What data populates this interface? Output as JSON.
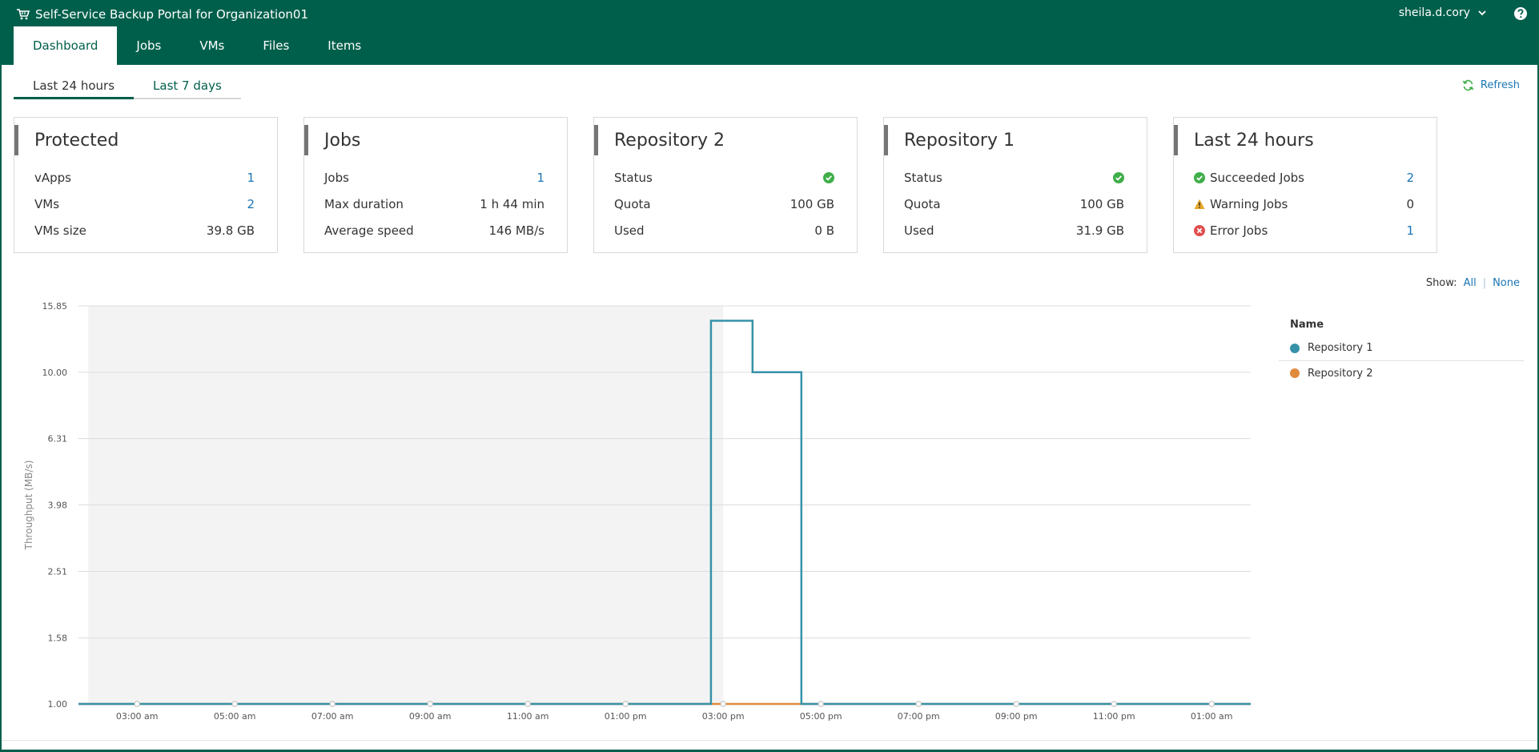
{
  "app": {
    "title": "Self-Service Backup Portal for Organization01",
    "user": "sheila.d.cory"
  },
  "nav": {
    "tabs": [
      {
        "label": "Dashboard",
        "active": true
      },
      {
        "label": "Jobs"
      },
      {
        "label": "VMs"
      },
      {
        "label": "Files"
      },
      {
        "label": "Items"
      }
    ]
  },
  "period": {
    "tabs": [
      {
        "label": "Last 24 hours",
        "active": true
      },
      {
        "label": "Last 7 days"
      }
    ],
    "refresh_label": "Refresh"
  },
  "cards": [
    {
      "title": "Protected",
      "rows": [
        {
          "label": "vApps",
          "value": "1"
        },
        {
          "label": "VMs",
          "value": "2"
        },
        {
          "label": "VMs size",
          "value": "39.8 GB"
        }
      ]
    },
    {
      "title": "Jobs",
      "rows": [
        {
          "label": "Jobs",
          "value": "1"
        },
        {
          "label": "Max duration",
          "value": "1 h 44 min"
        },
        {
          "label": "Average speed",
          "value": "146 MB/s"
        }
      ]
    },
    {
      "title": "Repository 2",
      "rows": [
        {
          "label": "Status",
          "icon": "status-ok-icon"
        },
        {
          "label": "Quota",
          "value": "100 GB"
        },
        {
          "label": "Used",
          "value": "0 B"
        }
      ]
    },
    {
      "title": "Repository 1",
      "rows": [
        {
          "label": "Status",
          "icon": "status-ok-icon"
        },
        {
          "label": "Quota",
          "value": "100 GB"
        },
        {
          "label": "Used",
          "value": "31.9 GB"
        }
      ]
    },
    {
      "title": "Last 24 hours",
      "rows": [
        {
          "label": "Succeeded Jobs",
          "value": "2",
          "icon": "success-icon"
        },
        {
          "label": "Warning Jobs",
          "value": "0",
          "icon": "warning-icon"
        },
        {
          "label": "Error Jobs",
          "value": "1",
          "icon": "error-icon"
        }
      ]
    }
  ],
  "show": {
    "label": "Show:",
    "all": "All",
    "none": "None"
  },
  "legend": {
    "title": "Name",
    "items": [
      {
        "name": "Repository 1",
        "color": "#3592a9"
      },
      {
        "name": "Repository 2",
        "color": "#e08a3c"
      }
    ]
  },
  "colors": {
    "brand": "#005f4b",
    "link": "#1a75b5",
    "success": "#3fae49",
    "warning": "#e8a72a",
    "error": "#e04e4e"
  },
  "chart_data": {
    "type": "line",
    "ylabel": "Throughput (MB/s)",
    "y_scale": "log",
    "y_ticks": [
      "15.85",
      "10.00",
      "6.31",
      "3.98",
      "2.51",
      "1.58",
      "1.00"
    ],
    "y_tick_values": [
      15.85,
      10.0,
      6.31,
      3.98,
      2.51,
      1.58,
      1.0
    ],
    "ylim": [
      1.0,
      15.85
    ],
    "x_ticks": [
      "03:00 am",
      "05:00 am",
      "07:00 am",
      "09:00 am",
      "11:00 am",
      "01:00 pm",
      "03:00 pm",
      "05:00 pm",
      "07:00 pm",
      "09:00 pm",
      "11:00 pm",
      "01:00 am"
    ],
    "x_tick_hours": [
      3,
      5,
      7,
      9,
      11,
      13,
      15,
      17,
      19,
      21,
      23,
      25
    ],
    "xlim_hours": [
      1.8,
      25.8
    ],
    "shaded_hours": [
      2.0,
      15.0
    ],
    "series": [
      {
        "name": "Repository 1",
        "color": "#3592a9",
        "step": true,
        "points": [
          [
            1.8,
            1.0
          ],
          [
            14.75,
            1.0
          ],
          [
            14.75,
            14.3
          ],
          [
            15.6,
            14.3
          ],
          [
            15.6,
            10.0
          ],
          [
            16.6,
            10.0
          ],
          [
            16.6,
            1.0
          ],
          [
            25.8,
            1.0
          ]
        ]
      },
      {
        "name": "Repository 2",
        "color": "#e08a3c",
        "step": true,
        "points": [
          [
            1.8,
            1.0
          ],
          [
            25.8,
            1.0
          ]
        ]
      }
    ]
  }
}
